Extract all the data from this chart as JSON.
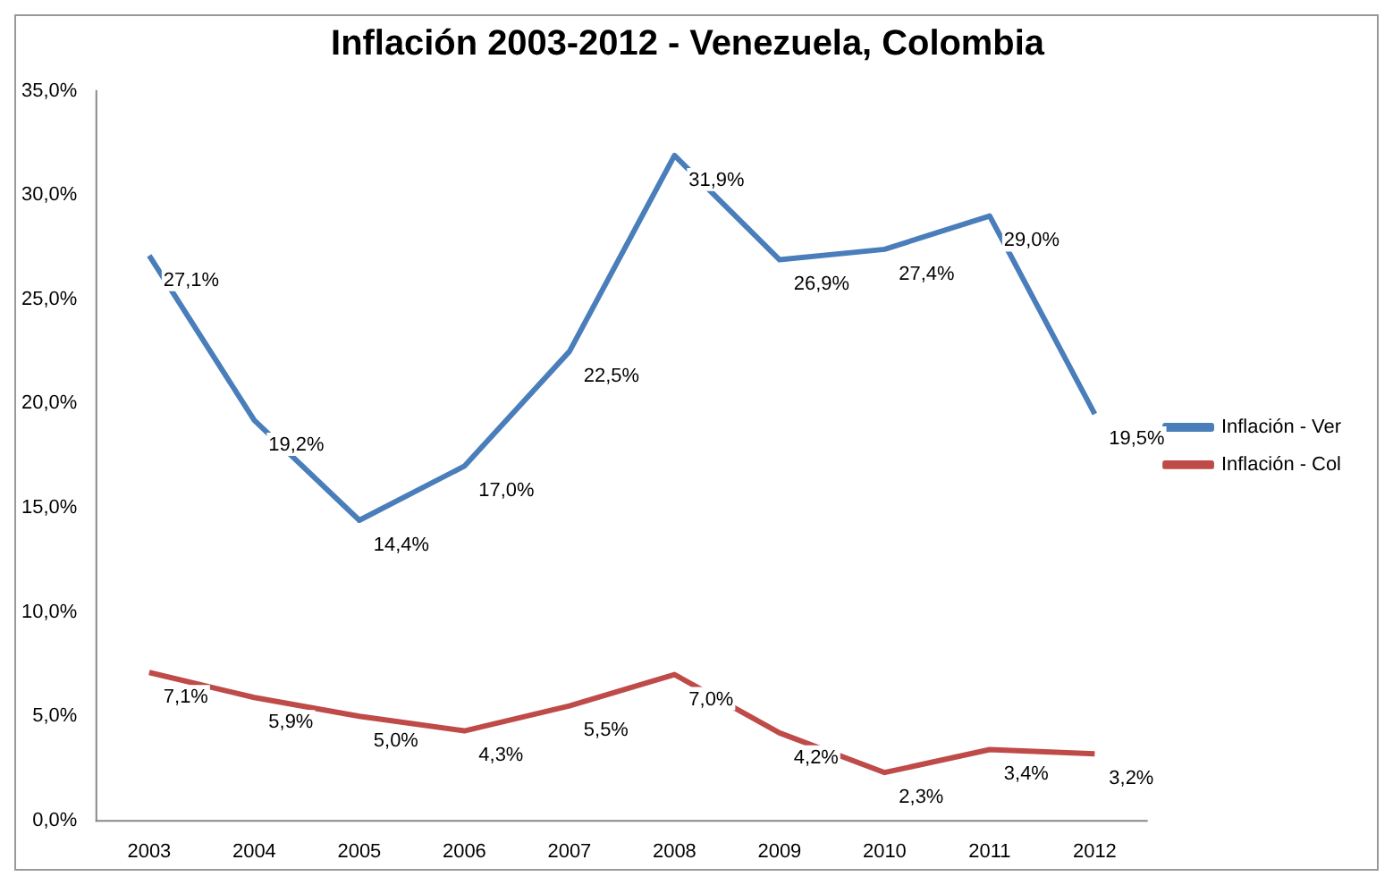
{
  "chart_data": {
    "type": "line",
    "title": "Inflación 2003-2012 - Venezuela, Colombia",
    "categories": [
      "2003",
      "2004",
      "2005",
      "2006",
      "2007",
      "2008",
      "2009",
      "2010",
      "2011",
      "2012"
    ],
    "series": [
      {
        "name": "Inflación - Ver",
        "color": "#4a7ebb",
        "values": [
          27.1,
          19.2,
          14.4,
          17.0,
          22.5,
          31.9,
          26.9,
          27.4,
          29.0,
          19.5
        ],
        "value_labels": [
          "27,1%",
          "19,2%",
          "14,4%",
          "17,0%",
          "22,5%",
          "31,9%",
          "26,9%",
          "27,4%",
          "29,0%",
          "19,5%"
        ]
      },
      {
        "name": "Inflación - Col",
        "color": "#be4b48",
        "values": [
          7.1,
          5.9,
          5.0,
          4.3,
          5.5,
          7.0,
          4.2,
          2.3,
          3.4,
          3.2
        ],
        "value_labels": [
          "7,1%",
          "5,9%",
          "5,0%",
          "4,3%",
          "5,5%",
          "7,0%",
          "4,2%",
          "2,3%",
          "3,4%",
          "3,2%"
        ]
      }
    ],
    "ylim": [
      0,
      35
    ],
    "yticks": [
      {
        "value": 0,
        "label": "0,0%"
      },
      {
        "value": 5,
        "label": "5,0%"
      },
      {
        "value": 10,
        "label": "10,0%"
      },
      {
        "value": 15,
        "label": "15,0%"
      },
      {
        "value": 20,
        "label": "20,0%"
      },
      {
        "value": 25,
        "label": "25,0%"
      },
      {
        "value": 30,
        "label": "30,0%"
      },
      {
        "value": 35,
        "label": "35,0%"
      }
    ],
    "grid": false,
    "legend": "right",
    "marker": "none",
    "line_style": "solid"
  }
}
